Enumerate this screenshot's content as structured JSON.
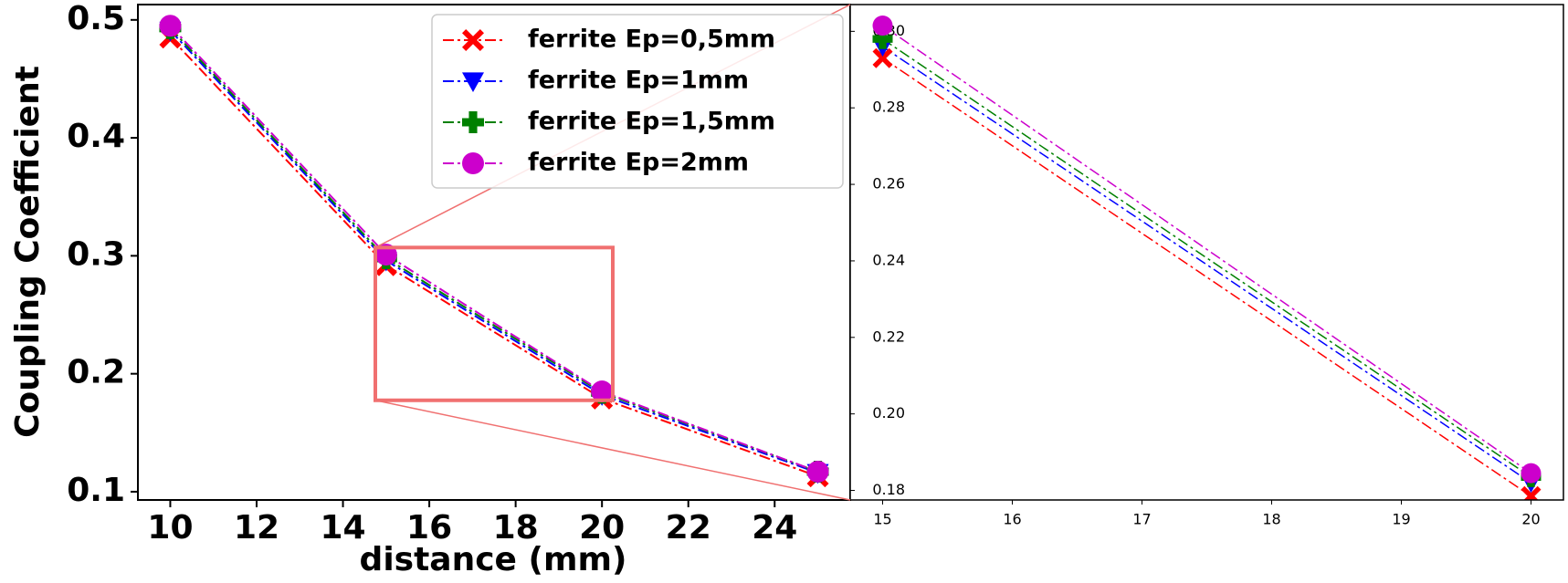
{
  "chart_data": [
    {
      "type": "line",
      "xlabel": "distance (mm)",
      "ylabel": "Coupling Coefficient",
      "x": [
        10,
        15,
        20,
        25
      ],
      "series": [
        {
          "name": "ferrite Ep=0,5mm",
          "color": "#ff0000",
          "marker": "X",
          "values": [
            0.485,
            0.292,
            0.179,
            0.113
          ]
        },
        {
          "name": "ferrite Ep=1mm",
          "color": "#0000ff",
          "marker": "v",
          "values": [
            0.491,
            0.296,
            0.182,
            0.116
          ]
        },
        {
          "name": "ferrite Ep=1,5mm",
          "color": "#008000",
          "marker": "P",
          "values": [
            0.493,
            0.298,
            0.184,
            0.117
          ]
        },
        {
          "name": "ferrite Ep=2mm",
          "color": "#cc00cc",
          "marker": "o",
          "values": [
            0.495,
            0.301,
            0.185,
            0.117
          ]
        }
      ],
      "xlim": [
        9.25,
        25.75
      ],
      "ylim": [
        0.093,
        0.513
      ],
      "xticks": [
        10,
        12,
        14,
        16,
        18,
        20,
        22,
        24
      ],
      "yticks": [
        0.1,
        0.2,
        0.3,
        0.4,
        0.5
      ],
      "legend": "upper right"
    },
    {
      "type": "line",
      "x": [
        15,
        20
      ],
      "series": [
        {
          "color": "#ff0000",
          "marker": "X",
          "values": [
            0.293,
            0.1785
          ]
        },
        {
          "color": "#0000ff",
          "marker": "v",
          "values": [
            0.296,
            0.182
          ]
        },
        {
          "color": "#008000",
          "marker": "P",
          "values": [
            0.298,
            0.1835
          ]
        },
        {
          "color": "#cc00cc",
          "marker": "o",
          "values": [
            0.3015,
            0.1845
          ]
        }
      ],
      "xlim": [
        14.75,
        20.25
      ],
      "ylim": [
        0.1775,
        0.307
      ],
      "xticks": [
        15,
        16,
        17,
        18,
        19,
        20
      ],
      "yticks": [
        {
          "value": 0.18,
          "label": "0.18"
        },
        {
          "value": 0.2,
          "label": "0.20"
        },
        {
          "value": 0.22,
          "label": "0.22"
        },
        {
          "value": 0.24,
          "label": "0.24"
        },
        {
          "value": 0.26,
          "label": "0.26"
        },
        {
          "value": 0.28,
          "label": "0.28"
        },
        {
          "value": 0.3,
          "label": "0.30"
        }
      ],
      "zoom_color": "#f07070"
    }
  ]
}
